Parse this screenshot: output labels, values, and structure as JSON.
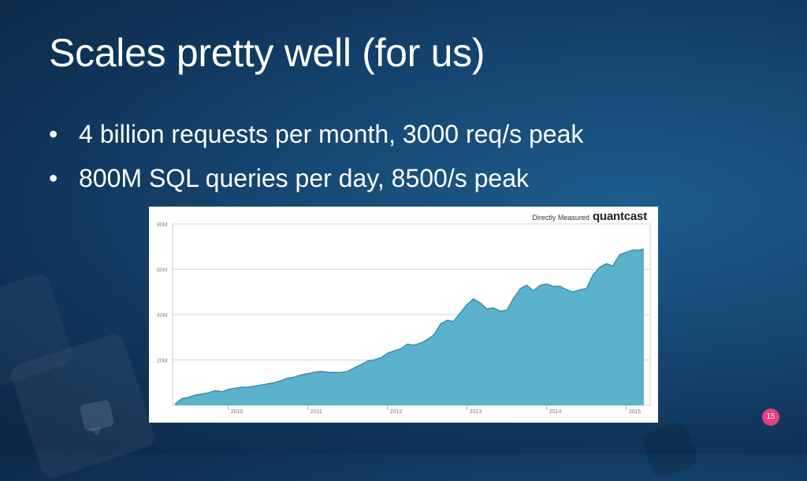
{
  "slide": {
    "title": "Scales pretty well (for us)",
    "bullets": [
      "4 billion requests per month, 3000 req/s peak",
      "800M SQL queries per day, 8500/s peak"
    ],
    "page_number": "15",
    "bullet_char": "•"
  },
  "chart_brand": {
    "measured_label": "Directly Measured",
    "logo_text": "quantcast",
    "logo_icon": "quantcast-logo"
  },
  "colors": {
    "area_fill": "#5ab2cc",
    "area_stroke": "#2f86a6",
    "page_badge": "#e8407a"
  },
  "chart_data": {
    "type": "area",
    "title": "",
    "xlabel": "",
    "ylabel": "",
    "ylim": [
      0,
      80
    ],
    "xlim": [
      2009.3,
      2015.3
    ],
    "yticks": [
      {
        "value": 20,
        "label": "20M"
      },
      {
        "value": 40,
        "label": "40M"
      },
      {
        "value": 60,
        "label": "60M"
      },
      {
        "value": 80,
        "label": "80M"
      }
    ],
    "xticks": [
      {
        "value": 2010,
        "label": "2010"
      },
      {
        "value": 2011,
        "label": "2011"
      },
      {
        "value": 2012,
        "label": "2012"
      },
      {
        "value": 2013,
        "label": "2013"
      },
      {
        "value": 2014,
        "label": "2014"
      },
      {
        "value": 2015,
        "label": "2015"
      }
    ],
    "grid": true,
    "legend": "none",
    "series": [
      {
        "points": [
          [
            2009.33,
            0.5
          ],
          [
            2009.42,
            3
          ],
          [
            2009.5,
            3.5
          ],
          [
            2009.58,
            4.5
          ],
          [
            2009.67,
            5
          ],
          [
            2009.75,
            5.5
          ],
          [
            2009.83,
            6.5
          ],
          [
            2009.92,
            6
          ],
          [
            2010.0,
            7
          ],
          [
            2010.08,
            7.5
          ],
          [
            2010.17,
            8
          ],
          [
            2010.25,
            8
          ],
          [
            2010.33,
            8.5
          ],
          [
            2010.42,
            9
          ],
          [
            2010.5,
            9.5
          ],
          [
            2010.58,
            10
          ],
          [
            2010.67,
            11
          ],
          [
            2010.75,
            12
          ],
          [
            2010.83,
            12.5
          ],
          [
            2010.92,
            13.5
          ],
          [
            2011.0,
            14
          ],
          [
            2011.08,
            14.5
          ],
          [
            2011.17,
            15
          ],
          [
            2011.25,
            14.5
          ],
          [
            2011.33,
            14.5
          ],
          [
            2011.42,
            14.5
          ],
          [
            2011.5,
            15
          ],
          [
            2011.58,
            16.5
          ],
          [
            2011.67,
            18
          ],
          [
            2011.75,
            19.5
          ],
          [
            2011.83,
            20
          ],
          [
            2011.92,
            21
          ],
          [
            2012.0,
            23
          ],
          [
            2012.08,
            24
          ],
          [
            2012.17,
            25
          ],
          [
            2012.25,
            27
          ],
          [
            2012.33,
            26.5
          ],
          [
            2012.42,
            27.5
          ],
          [
            2012.5,
            29
          ],
          [
            2012.58,
            31
          ],
          [
            2012.67,
            36
          ],
          [
            2012.75,
            37.5
          ],
          [
            2012.83,
            37
          ],
          [
            2012.92,
            41
          ],
          [
            2013.0,
            44.5
          ],
          [
            2013.08,
            47
          ],
          [
            2013.17,
            45
          ],
          [
            2013.25,
            42.5
          ],
          [
            2013.33,
            43
          ],
          [
            2013.42,
            41.5
          ],
          [
            2013.5,
            42
          ],
          [
            2013.58,
            47
          ],
          [
            2013.67,
            51.5
          ],
          [
            2013.75,
            53
          ],
          [
            2013.83,
            50.5
          ],
          [
            2013.92,
            53
          ],
          [
            2014.0,
            53.5
          ],
          [
            2014.08,
            52.5
          ],
          [
            2014.17,
            52.5
          ],
          [
            2014.25,
            51
          ],
          [
            2014.33,
            50
          ],
          [
            2014.42,
            51
          ],
          [
            2014.5,
            51.5
          ],
          [
            2014.58,
            57.5
          ],
          [
            2014.67,
            61
          ],
          [
            2014.75,
            62.5
          ],
          [
            2014.83,
            61.5
          ],
          [
            2014.92,
            66.5
          ],
          [
            2015.0,
            67.5
          ],
          [
            2015.08,
            68.5
          ],
          [
            2015.17,
            68.5
          ],
          [
            2015.22,
            69
          ]
        ]
      }
    ]
  }
}
